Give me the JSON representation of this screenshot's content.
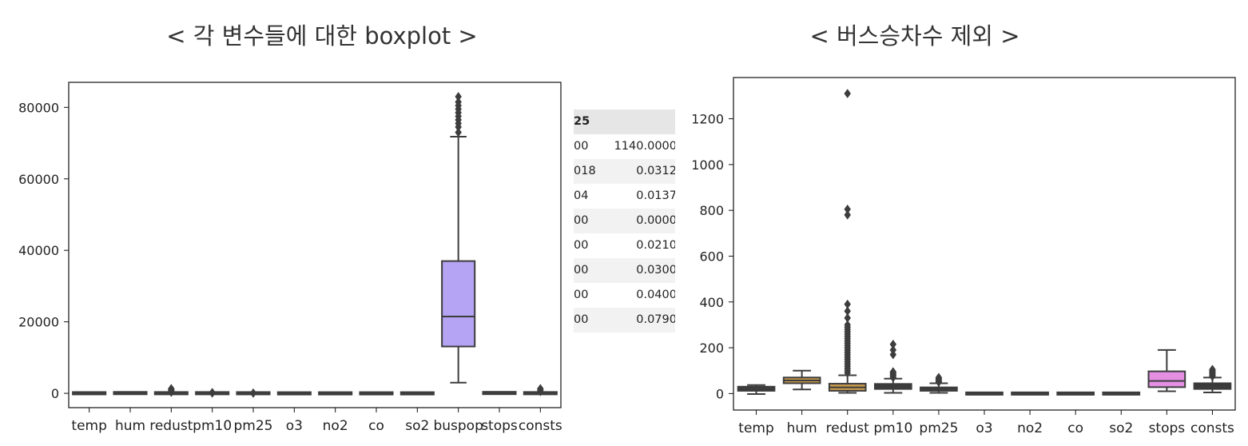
{
  "titles": {
    "left": "< 각 변수들에 대한 boxplot >",
    "right": "< 버스승차수 제외 >"
  },
  "table_fragment": {
    "header": "25",
    "rows": [
      {
        "c1": "00",
        "c2": "1140.0000"
      },
      {
        "c1": "018",
        "c2": "0.0312"
      },
      {
        "c1": "04",
        "c2": "0.0137"
      },
      {
        "c1": "00",
        "c2": "0.0000"
      },
      {
        "c1": "00",
        "c2": "0.0210"
      },
      {
        "c1": "00",
        "c2": "0.0300"
      },
      {
        "c1": "00",
        "c2": "0.0400"
      },
      {
        "c1": "00",
        "c2": "0.0790"
      }
    ]
  },
  "chart_data": [
    {
      "type": "box",
      "title": "< 각 변수들에 대한 boxplot >",
      "categories": [
        "temp",
        "hum",
        "redust",
        "pm10",
        "pm25",
        "o3",
        "no2",
        "co",
        "so2",
        "buspop",
        "stops",
        "consts"
      ],
      "ylim": [
        -4000,
        87000
      ],
      "yticks": [
        0,
        20000,
        40000,
        60000,
        80000
      ],
      "ytick_labels": [
        "0",
        "20000",
        "40000",
        "60000",
        "80000"
      ],
      "boxes": [
        {
          "name": "temp",
          "whislo": -1,
          "q1": 15,
          "med": 22,
          "q3": 30,
          "whishi": 37,
          "fliers": [],
          "color": "#3a3a3a"
        },
        {
          "name": "hum",
          "whislo": 20,
          "q1": 45,
          "med": 58,
          "q3": 70,
          "whishi": 100,
          "fliers": [],
          "color": "#3a3a3a"
        },
        {
          "name": "redust",
          "whislo": 5,
          "q1": 12,
          "med": 22,
          "q3": 40,
          "whishi": 80,
          "fliers": [
            300,
            500,
            800,
            1100,
            1310
          ],
          "color": "#3a3a3a"
        },
        {
          "name": "pm10",
          "whislo": 3,
          "q1": 20,
          "med": 30,
          "q3": 42,
          "whishi": 65,
          "fliers": [
            90,
            150,
            215
          ],
          "color": "#3a3a3a"
        },
        {
          "name": "pm25",
          "whislo": 3,
          "q1": 12,
          "med": 18,
          "q3": 27,
          "whishi": 45,
          "fliers": [
            60,
            75
          ],
          "color": "#3a3a3a"
        },
        {
          "name": "o3",
          "whislo": 0,
          "q1": 0,
          "med": 0,
          "q3": 0,
          "whishi": 0,
          "fliers": [],
          "color": "#3a3a3a"
        },
        {
          "name": "no2",
          "whislo": 0,
          "q1": 0,
          "med": 0,
          "q3": 0,
          "whishi": 0,
          "fliers": [],
          "color": "#3a3a3a"
        },
        {
          "name": "co",
          "whislo": 0,
          "q1": 0,
          "med": 0,
          "q3": 0,
          "whishi": 0,
          "fliers": [],
          "color": "#3a3a3a"
        },
        {
          "name": "so2",
          "whislo": 0,
          "q1": 0,
          "med": 0,
          "q3": 0,
          "whishi": 0,
          "fliers": [],
          "color": "#3a3a3a"
        },
        {
          "name": "buspop",
          "whislo": 3000,
          "q1": 13100,
          "med": 21500,
          "q3": 37000,
          "whishi": 71800,
          "fliers": [
            73000,
            74500,
            75500,
            76500,
            77500,
            78500,
            79500,
            80500,
            81500,
            83000
          ],
          "color": "#b5a4f3"
        },
        {
          "name": "stops",
          "whislo": 10,
          "q1": 30,
          "med": 55,
          "q3": 95,
          "whishi": 190,
          "fliers": [],
          "color": "#3a3a3a"
        },
        {
          "name": "consts",
          "whislo": 5,
          "q1": 20,
          "med": 30,
          "q3": 45,
          "whishi": 70,
          "fliers": [
            500,
            900,
            1300
          ],
          "color": "#3a3a3a"
        }
      ]
    },
    {
      "type": "box",
      "title": "< 버스승차수 제외 >",
      "categories": [
        "temp",
        "hum",
        "redust",
        "pm10",
        "pm25",
        "o3",
        "no2",
        "co",
        "so2",
        "stops",
        "consts"
      ],
      "ylim": [
        -72,
        1380
      ],
      "yticks": [
        0,
        200,
        400,
        600,
        800,
        1000,
        1200
      ],
      "ytick_labels": [
        "0",
        "200",
        "400",
        "600",
        "800",
        "1000",
        "1200"
      ],
      "boxes": [
        {
          "name": "temp",
          "whislo": -2,
          "q1": 12,
          "med": 22,
          "q3": 30,
          "whishi": 37,
          "fliers": [],
          "color": "#3a3a3a"
        },
        {
          "name": "hum",
          "whislo": 18,
          "q1": 45,
          "med": 57,
          "q3": 70,
          "whishi": 100,
          "fliers": [],
          "color": "#c79a4d"
        },
        {
          "name": "redust",
          "whislo": 3,
          "q1": 12,
          "med": 27,
          "q3": 43,
          "whishi": 80,
          "fliers": [
            90,
            100,
            110,
            120,
            130,
            140,
            150,
            160,
            170,
            180,
            190,
            200,
            210,
            220,
            230,
            240,
            250,
            260,
            270,
            280,
            290,
            300,
            330,
            360,
            390,
            780,
            805,
            1310
          ],
          "color": "#c79a4d"
        },
        {
          "name": "pm10",
          "whislo": 3,
          "q1": 20,
          "med": 30,
          "q3": 42,
          "whishi": 65,
          "fliers": [
            70,
            75,
            80,
            85,
            90,
            95,
            170,
            190,
            215
          ],
          "color": "#3a3a3a"
        },
        {
          "name": "pm25",
          "whislo": 3,
          "q1": 12,
          "med": 18,
          "q3": 27,
          "whishi": 45,
          "fliers": [
            50,
            55,
            60,
            65,
            70
          ],
          "color": "#3a3a3a"
        },
        {
          "name": "o3",
          "whislo": 0,
          "q1": 0,
          "med": 0,
          "q3": 0,
          "whishi": 0,
          "fliers": [],
          "color": "#3a3a3a"
        },
        {
          "name": "no2",
          "whislo": 0,
          "q1": 0,
          "med": 0,
          "q3": 0,
          "whishi": 0,
          "fliers": [],
          "color": "#3a3a3a"
        },
        {
          "name": "co",
          "whislo": 0,
          "q1": 0,
          "med": 0,
          "q3": 0,
          "whishi": 0,
          "fliers": [],
          "color": "#3a3a3a"
        },
        {
          "name": "so2",
          "whislo": 0,
          "q1": 0,
          "med": 0,
          "q3": 0,
          "whishi": 0,
          "fliers": [],
          "color": "#3a3a3a"
        },
        {
          "name": "stops",
          "whislo": 10,
          "q1": 28,
          "med": 55,
          "q3": 97,
          "whishi": 190,
          "fliers": [],
          "color": "#e58fe3"
        },
        {
          "name": "consts",
          "whislo": 5,
          "q1": 20,
          "med": 30,
          "q3": 45,
          "whishi": 70,
          "fliers": [
            75,
            80,
            85,
            90,
            95,
            100,
            105
          ],
          "color": "#3a3a3a"
        }
      ]
    }
  ]
}
